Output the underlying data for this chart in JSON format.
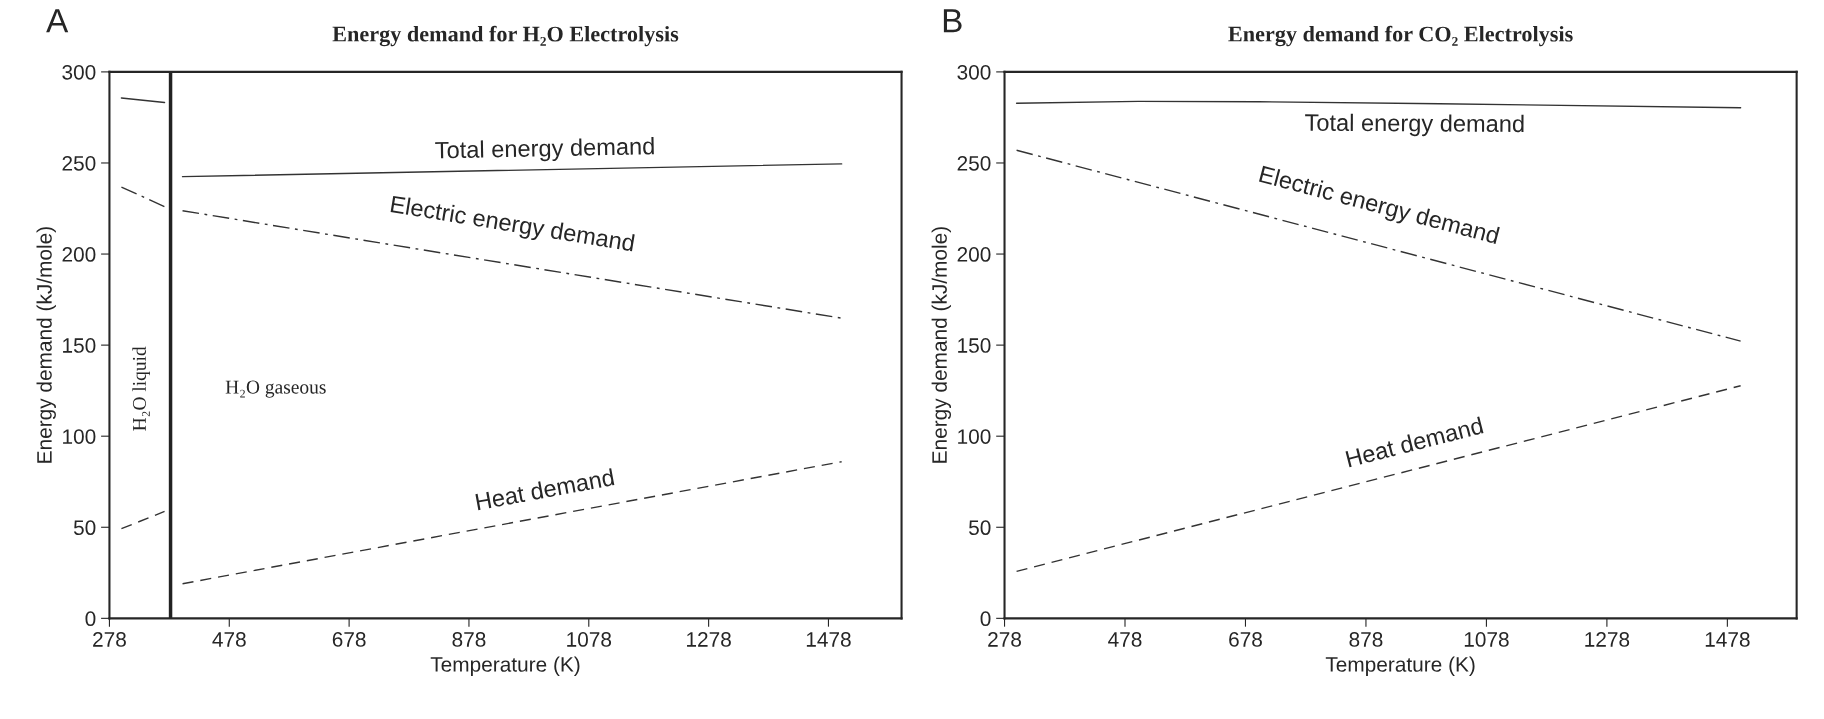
{
  "chart_data": [
    {
      "type": "line",
      "title": "Energy demand for H₂O Electrolysis",
      "xlabel": "Temperature (K)",
      "ylabel": "Energy demand (kJ/mole)",
      "xlim": [
        278,
        1600
      ],
      "ylim": [
        0,
        300
      ],
      "xticks": [
        278,
        478,
        678,
        878,
        1078,
        1278,
        1478
      ],
      "yticks": [
        0,
        50,
        100,
        150,
        200,
        250,
        300
      ],
      "grid": false,
      "legend": false,
      "series": [
        {
          "name": "Total energy demand",
          "color": "#333333",
          "line_style": "solid",
          "x": [
            298,
            370,
            385,
            400,
            1500
          ],
          "values": [
            285.7,
            283.2,
            null,
            242.5,
            249.5
          ]
        },
        {
          "name": "Electric energy demand",
          "color": "#333333",
          "line_style": "dashdot",
          "x": [
            298,
            370,
            385,
            400,
            1500
          ],
          "values": [
            236.8,
            226,
            null,
            223.8,
            164.8
          ]
        },
        {
          "name": "Heat demand",
          "color": "#333333",
          "line_style": "dashed",
          "x": [
            298,
            370,
            385,
            400,
            1500
          ],
          "values": [
            49.2,
            58.7,
            null,
            19,
            86
          ]
        }
      ],
      "ref_lines": [
        {
          "axis": "x",
          "value": 380,
          "color": "#222222",
          "line_style": "solid"
        }
      ],
      "annotations": [
        "A",
        "H₂O liquid",
        "H₂O gaseous"
      ]
    },
    {
      "type": "line",
      "title": "Energy demand for CO₂ Electrolysis",
      "xlabel": "Temperature (K)",
      "ylabel": "Energy demand (kJ/mole)",
      "xlim": [
        278,
        1593
      ],
      "ylim": [
        0,
        300
      ],
      "xticks": [
        278,
        478,
        678,
        878,
        1078,
        1278,
        1478
      ],
      "yticks": [
        0,
        50,
        100,
        150,
        200,
        250,
        300
      ],
      "grid": false,
      "legend": false,
      "series": [
        {
          "name": "Total energy demand",
          "color": "#333333",
          "line_style": "solid",
          "x": [
            298,
            500,
            700,
            1000,
            1500
          ],
          "values": [
            282.8,
            283.8,
            283.6,
            282.5,
            280.3
          ]
        },
        {
          "name": "Electric energy demand",
          "color": "#333333",
          "line_style": "dashdot",
          "x": [
            298,
            1500
          ],
          "values": [
            257,
            152.2
          ]
        },
        {
          "name": "Heat demand",
          "color": "#333333",
          "line_style": "dashed",
          "x": [
            298,
            1500
          ],
          "values": [
            25.8,
            127.7
          ]
        }
      ],
      "annotations": [
        "B"
      ]
    }
  ]
}
